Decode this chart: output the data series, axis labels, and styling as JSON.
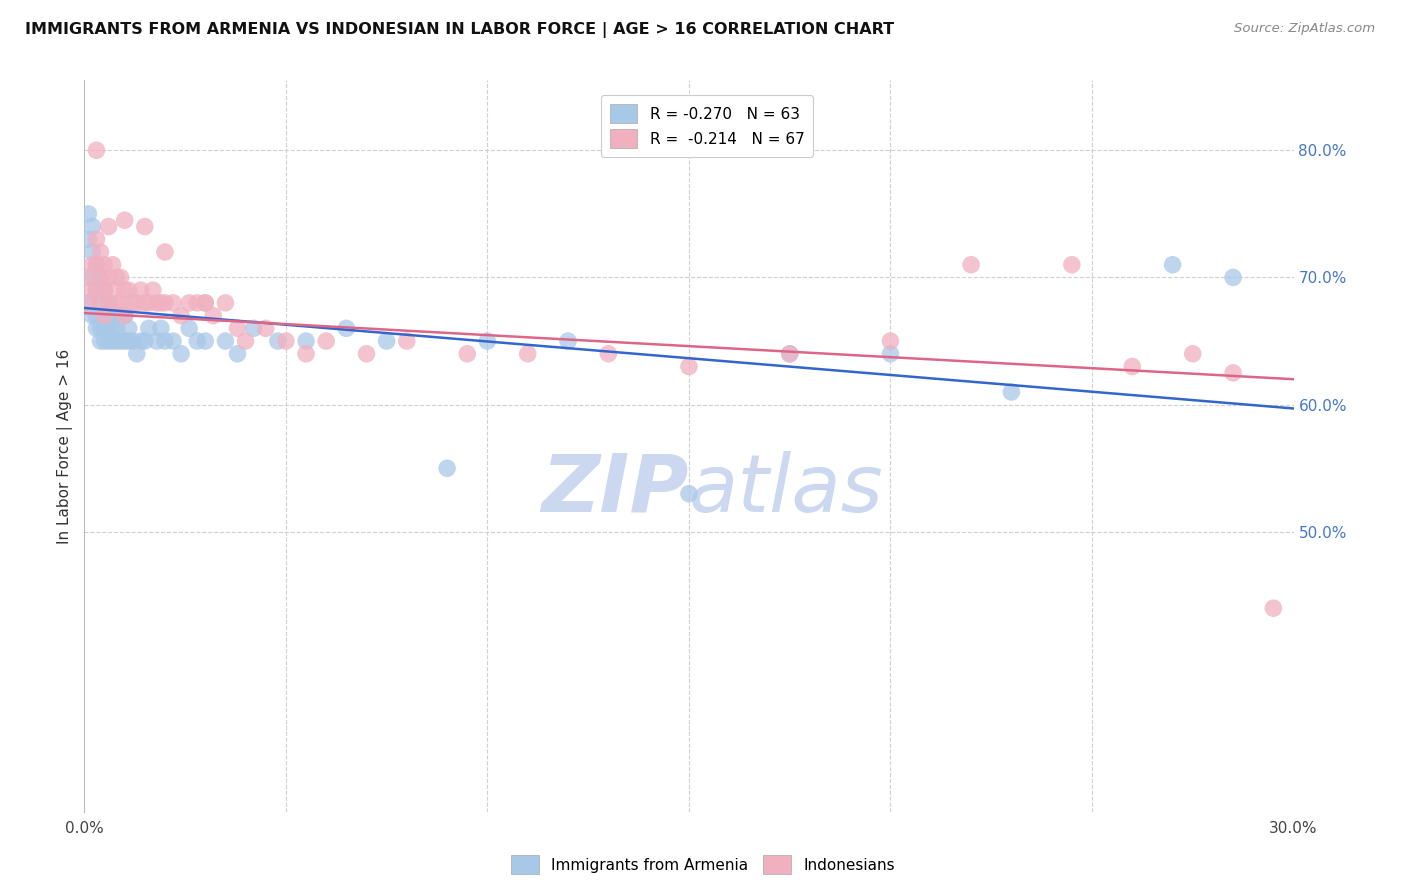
{
  "title": "IMMIGRANTS FROM ARMENIA VS INDONESIAN IN LABOR FORCE | AGE > 16 CORRELATION CHART",
  "source_text": "Source: ZipAtlas.com",
  "ylabel": "In Labor Force | Age > 16",
  "xlim": [
    0.0,
    0.3
  ],
  "ylim": [
    0.28,
    0.855
  ],
  "grid_color": "#d0d0d0",
  "background_color": "#ffffff",
  "scatter_blue_color": "#a8c8e8",
  "scatter_pink_color": "#f0b0c0",
  "line_blue_color": "#3366cc",
  "line_pink_color": "#dd6688",
  "watermark_color": "#ccd8f0",
  "blue_line_x0": 0.0,
  "blue_line_x1": 0.3,
  "blue_line_y0": 0.676,
  "blue_line_y1": 0.597,
  "pink_line_x0": 0.0,
  "pink_line_x1": 0.3,
  "pink_line_y0": 0.672,
  "pink_line_y1": 0.62,
  "blue_points_x": [
    0.001,
    0.001,
    0.001,
    0.002,
    0.002,
    0.002,
    0.002,
    0.003,
    0.003,
    0.003,
    0.003,
    0.004,
    0.004,
    0.004,
    0.004,
    0.005,
    0.005,
    0.005,
    0.005,
    0.006,
    0.006,
    0.006,
    0.007,
    0.007,
    0.007,
    0.008,
    0.008,
    0.008,
    0.009,
    0.009,
    0.01,
    0.01,
    0.011,
    0.011,
    0.012,
    0.013,
    0.014,
    0.015,
    0.016,
    0.018,
    0.019,
    0.02,
    0.022,
    0.024,
    0.026,
    0.028,
    0.03,
    0.035,
    0.038,
    0.042,
    0.048,
    0.055,
    0.065,
    0.075,
    0.09,
    0.1,
    0.12,
    0.15,
    0.175,
    0.2,
    0.23,
    0.27,
    0.285
  ],
  "blue_points_y": [
    0.75,
    0.73,
    0.68,
    0.74,
    0.72,
    0.7,
    0.67,
    0.71,
    0.69,
    0.67,
    0.66,
    0.7,
    0.68,
    0.66,
    0.65,
    0.69,
    0.67,
    0.66,
    0.65,
    0.68,
    0.66,
    0.65,
    0.67,
    0.66,
    0.65,
    0.67,
    0.66,
    0.65,
    0.67,
    0.65,
    0.67,
    0.65,
    0.66,
    0.65,
    0.65,
    0.64,
    0.65,
    0.65,
    0.66,
    0.65,
    0.66,
    0.65,
    0.65,
    0.64,
    0.66,
    0.65,
    0.65,
    0.65,
    0.64,
    0.66,
    0.65,
    0.65,
    0.66,
    0.65,
    0.55,
    0.65,
    0.65,
    0.53,
    0.64,
    0.64,
    0.61,
    0.71,
    0.7
  ],
  "pink_points_x": [
    0.001,
    0.001,
    0.002,
    0.002,
    0.003,
    0.003,
    0.003,
    0.004,
    0.004,
    0.004,
    0.005,
    0.005,
    0.005,
    0.006,
    0.006,
    0.007,
    0.007,
    0.008,
    0.008,
    0.009,
    0.009,
    0.01,
    0.01,
    0.011,
    0.012,
    0.013,
    0.014,
    0.015,
    0.016,
    0.017,
    0.018,
    0.019,
    0.02,
    0.022,
    0.024,
    0.026,
    0.028,
    0.03,
    0.032,
    0.035,
    0.038,
    0.04,
    0.045,
    0.05,
    0.055,
    0.06,
    0.07,
    0.08,
    0.095,
    0.11,
    0.13,
    0.15,
    0.175,
    0.2,
    0.22,
    0.245,
    0.26,
    0.275,
    0.285,
    0.295,
    0.003,
    0.006,
    0.01,
    0.015,
    0.02,
    0.03
  ],
  "pink_points_y": [
    0.7,
    0.68,
    0.71,
    0.69,
    0.73,
    0.71,
    0.69,
    0.72,
    0.7,
    0.68,
    0.71,
    0.69,
    0.67,
    0.7,
    0.68,
    0.71,
    0.69,
    0.7,
    0.68,
    0.7,
    0.68,
    0.69,
    0.67,
    0.69,
    0.68,
    0.68,
    0.69,
    0.68,
    0.68,
    0.69,
    0.68,
    0.68,
    0.68,
    0.68,
    0.67,
    0.68,
    0.68,
    0.68,
    0.67,
    0.68,
    0.66,
    0.65,
    0.66,
    0.65,
    0.64,
    0.65,
    0.64,
    0.65,
    0.64,
    0.64,
    0.64,
    0.63,
    0.64,
    0.65,
    0.71,
    0.71,
    0.63,
    0.64,
    0.625,
    0.44,
    0.8,
    0.74,
    0.745,
    0.74,
    0.72,
    0.68
  ]
}
